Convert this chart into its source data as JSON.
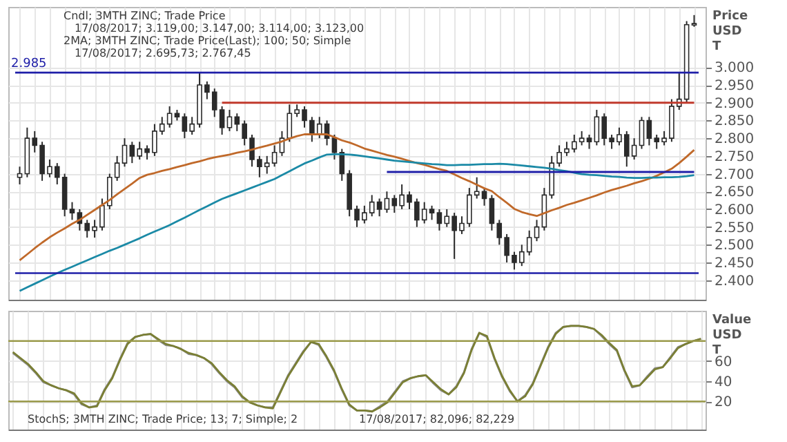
{
  "chart_data": [
    {
      "type": "candlestick",
      "ylabel": "Price USD T",
      "grid": true,
      "tick_labels": "y",
      "categories": [
        null,
        null,
        null,
        null,
        null,
        null,
        null,
        null,
        null,
        null,
        null,
        null,
        null,
        null,
        null,
        null,
        null,
        null,
        null,
        null,
        null,
        null,
        null,
        null,
        null,
        null,
        null,
        null,
        null,
        null,
        null,
        null,
        null,
        null,
        null,
        null,
        null,
        null,
        null,
        null,
        null,
        null,
        null,
        null,
        null,
        null,
        null,
        null,
        null,
        null,
        null,
        null,
        null,
        null,
        null,
        null,
        null,
        null,
        null,
        null,
        null,
        null,
        null,
        null,
        null,
        null,
        null,
        null,
        null,
        null,
        null,
        null,
        null,
        null,
        null,
        null,
        null,
        null,
        null,
        null,
        null,
        null,
        null,
        null,
        null,
        null,
        null,
        null,
        null,
        null,
        null
      ],
      "ylim": [
        2345,
        3170
      ],
      "yticks": [
        {
          "value": 2400,
          "label": "2.400"
        },
        {
          "value": 2450,
          "label": "2.450"
        },
        {
          "value": 2500,
          "label": "2.500"
        },
        {
          "value": 2550,
          "label": "2.550"
        },
        {
          "value": 2600,
          "label": "2.600"
        },
        {
          "value": 2650,
          "label": "2.650"
        },
        {
          "value": 2700,
          "label": "2.700"
        },
        {
          "value": 2750,
          "label": "2.750"
        },
        {
          "value": 2800,
          "label": "2.800"
        },
        {
          "value": 2850,
          "label": "2.850"
        },
        {
          "value": 2900,
          "label": "2.900"
        },
        {
          "value": 2950,
          "label": "2.950"
        },
        {
          "value": 3000,
          "label": "3.000"
        }
      ],
      "ref_lines": [
        {
          "axis": "y",
          "value": 2985,
          "label": "2.985",
          "color": "#1f1fa8"
        },
        {
          "axis": "y",
          "value": 2420,
          "label": null,
          "color": "#1f1fa8"
        }
      ],
      "annotations": [
        "Cndl; 3MTH        ZINC; Trade Price",
        "17/08/2017; 3.119,00; 3.147,00; 3.114,00; 3.123,00",
        "2MA; 3MTH        ZINC; Trade Price(Last);  100; 50; Simple",
        "17/08/2017; 2.695,73; 2.767,45"
      ],
      "series": [
        {
          "type": "candlestick",
          "color": "#2b2b2b",
          "ohlc": [
            [
              2690,
              2720,
              2670,
              2700
            ],
            [
              2700,
              2830,
              2690,
              2800
            ],
            [
              2800,
              2820,
              2760,
              2780
            ],
            [
              2780,
              2790,
              2680,
              2700
            ],
            [
              2700,
              2740,
              2690,
              2720
            ],
            [
              2720,
              2730,
              2670,
              2690
            ],
            [
              2690,
              2700,
              2580,
              2600
            ],
            [
              2600,
              2620,
              2570,
              2590
            ],
            [
              2590,
              2600,
              2540,
              2560
            ],
            [
              2560,
              2570,
              2520,
              2540
            ],
            [
              2540,
              2570,
              2520,
              2550
            ],
            [
              2550,
              2630,
              2540,
              2610
            ],
            [
              2610,
              2700,
              2600,
              2690
            ],
            [
              2690,
              2750,
              2680,
              2730
            ],
            [
              2730,
              2800,
              2720,
              2780
            ],
            [
              2780,
              2790,
              2730,
              2750
            ],
            [
              2750,
              2790,
              2740,
              2770
            ],
            [
              2770,
              2780,
              2740,
              2760
            ],
            [
              2760,
              2840,
              2750,
              2820
            ],
            [
              2820,
              2860,
              2810,
              2840
            ],
            [
              2840,
              2890,
              2830,
              2870
            ],
            [
              2870,
              2880,
              2850,
              2860
            ],
            [
              2860,
              2870,
              2800,
              2820
            ],
            [
              2820,
              2860,
              2810,
              2840
            ],
            [
              2840,
              2985,
              2830,
              2950
            ],
            [
              2950,
              2960,
              2910,
              2930
            ],
            [
              2930,
              2940,
              2860,
              2880
            ],
            [
              2880,
              2890,
              2810,
              2830
            ],
            [
              2830,
              2880,
              2820,
              2860
            ],
            [
              2860,
              2870,
              2820,
              2840
            ],
            [
              2840,
              2850,
              2780,
              2800
            ],
            [
              2800,
              2810,
              2720,
              2740
            ],
            [
              2740,
              2750,
              2690,
              2720
            ],
            [
              2720,
              2750,
              2700,
              2730
            ],
            [
              2730,
              2780,
              2720,
              2760
            ],
            [
              2760,
              2820,
              2750,
              2800
            ],
            [
              2800,
              2895,
              2790,
              2870
            ],
            [
              2870,
              2895,
              2860,
              2880
            ],
            [
              2880,
              2890,
              2830,
              2850
            ],
            [
              2850,
              2860,
              2790,
              2810
            ],
            [
              2810,
              2860,
              2800,
              2840
            ],
            [
              2840,
              2850,
              2780,
              2800
            ],
            [
              2800,
              2810,
              2740,
              2760
            ],
            [
              2760,
              2770,
              2680,
              2700
            ],
            [
              2700,
              2710,
              2580,
              2600
            ],
            [
              2600,
              2610,
              2550,
              2570
            ],
            [
              2570,
              2610,
              2560,
              2590
            ],
            [
              2590,
              2640,
              2580,
              2620
            ],
            [
              2620,
              2630,
              2580,
              2600
            ],
            [
              2600,
              2650,
              2590,
              2630
            ],
            [
              2630,
              2640,
              2590,
              2610
            ],
            [
              2610,
              2670,
              2600,
              2640
            ],
            [
              2640,
              2650,
              2600,
              2620
            ],
            [
              2620,
              2630,
              2550,
              2570
            ],
            [
              2570,
              2620,
              2560,
              2600
            ],
            [
              2600,
              2610,
              2570,
              2590
            ],
            [
              2590,
              2600,
              2540,
              2560
            ],
            [
              2560,
              2600,
              2550,
              2580
            ],
            [
              2580,
              2590,
              2460,
              2540
            ],
            [
              2540,
              2580,
              2530,
              2560
            ],
            [
              2560,
              2660,
              2550,
              2640
            ],
            [
              2640,
              2690,
              2630,
              2650
            ],
            [
              2650,
              2660,
              2610,
              2630
            ],
            [
              2630,
              2640,
              2540,
              2560
            ],
            [
              2560,
              2570,
              2500,
              2520
            ],
            [
              2520,
              2530,
              2450,
              2470
            ],
            [
              2470,
              2480,
              2430,
              2450
            ],
            [
              2450,
              2500,
              2440,
              2480
            ],
            [
              2480,
              2540,
              2470,
              2520
            ],
            [
              2520,
              2570,
              2510,
              2550
            ],
            [
              2550,
              2660,
              2540,
              2640
            ],
            [
              2640,
              2750,
              2630,
              2730
            ],
            [
              2730,
              2780,
              2720,
              2760
            ],
            [
              2760,
              2790,
              2750,
              2770
            ],
            [
              2770,
              2810,
              2760,
              2790
            ],
            [
              2790,
              2820,
              2780,
              2800
            ],
            [
              2800,
              2810,
              2770,
              2790
            ],
            [
              2790,
              2880,
              2780,
              2860
            ],
            [
              2860,
              2870,
              2780,
              2800
            ],
            [
              2800,
              2810,
              2770,
              2790
            ],
            [
              2790,
              2830,
              2780,
              2810
            ],
            [
              2810,
              2820,
              2720,
              2750
            ],
            [
              2750,
              2800,
              2740,
              2780
            ],
            [
              2780,
              2860,
              2770,
              2850
            ],
            [
              2850,
              2860,
              2780,
              2800
            ],
            [
              2800,
              2810,
              2770,
              2790
            ],
            [
              2790,
              2820,
              2780,
              2800
            ],
            [
              2800,
              2910,
              2790,
              2890
            ],
            [
              2890,
              2985,
              2880,
              2910
            ],
            [
              2910,
              3130,
              2900,
              3120
            ],
            [
              3119,
              3147,
              3114,
              3123
            ]
          ]
        },
        {
          "type": "line",
          "color": "#c0692a",
          "values": [
            2456,
            2473,
            2490,
            2506,
            2521,
            2534,
            2546,
            2559,
            2570,
            2584,
            2598,
            2612,
            2626,
            2642,
            2657,
            2672,
            2688,
            2697,
            2702,
            2708,
            2713,
            2719,
            2724,
            2730,
            2735,
            2741,
            2746,
            2750,
            2754,
            2759,
            2763,
            2768,
            2774,
            2779,
            2785,
            2791,
            2799,
            2806,
            2811,
            2811,
            2811,
            2811,
            2803,
            2794,
            2788,
            2780,
            2771,
            2765,
            2759,
            2753,
            2748,
            2742,
            2736,
            2730,
            2725,
            2719,
            2713,
            2708,
            2698,
            2688,
            2679,
            2669,
            2659,
            2651,
            2634,
            2618,
            2601,
            2592,
            2586,
            2581,
            2589,
            2597,
            2604,
            2612,
            2618,
            2625,
            2632,
            2639,
            2647,
            2654,
            2660,
            2666,
            2673,
            2679,
            2686,
            2694,
            2704,
            2714,
            2730,
            2748,
            2767
          ]
        },
        {
          "type": "line",
          "color": "#1b8aa6",
          "values": [
            2370,
            2380,
            2390,
            2400,
            2410,
            2420,
            2429,
            2438,
            2447,
            2456,
            2465,
            2474,
            2483,
            2491,
            2500,
            2509,
            2518,
            2528,
            2537,
            2546,
            2555,
            2566,
            2576,
            2587,
            2598,
            2608,
            2619,
            2629,
            2637,
            2645,
            2653,
            2661,
            2669,
            2677,
            2685,
            2696,
            2707,
            2718,
            2729,
            2737,
            2746,
            2754,
            2755,
            2755,
            2754,
            2752,
            2749,
            2746,
            2743,
            2740,
            2737,
            2735,
            2733,
            2731,
            2729,
            2727,
            2726,
            2724,
            2724,
            2725,
            2725,
            2726,
            2727,
            2727,
            2728,
            2727,
            2725,
            2723,
            2721,
            2719,
            2717,
            2714,
            2710,
            2707,
            2703,
            2699,
            2697,
            2696,
            2694,
            2692,
            2691,
            2689,
            2688,
            2688,
            2689,
            2689,
            2690,
            2690,
            2691,
            2693,
            2696
          ]
        },
        {
          "type": "line",
          "color": "#c0392b",
          "values": [
            null,
            null,
            null,
            null,
            null,
            null,
            null,
            null,
            null,
            null,
            null,
            null,
            null,
            null,
            null,
            null,
            null,
            null,
            null,
            null,
            null,
            null,
            null,
            null,
            null,
            null,
            null,
            2900,
            2900,
            2900,
            2900,
            2900,
            2900,
            2900,
            2900,
            2900,
            2900,
            2900,
            2900,
            2900,
            2900,
            2900,
            2900,
            2900,
            2900,
            2900,
            2900,
            2900,
            2900,
            2900,
            2900,
            2900,
            2900,
            2900,
            2900,
            2900,
            2900,
            2900,
            2900,
            2900,
            2900,
            2900,
            2900,
            2900,
            2900,
            2900,
            2900,
            2900,
            2900,
            2900,
            2900,
            2900,
            2900,
            2900,
            2900,
            2900,
            2900,
            2900,
            2900,
            2900,
            2900,
            2900,
            2900,
            2900,
            2900,
            2900,
            2900,
            2900,
            2900,
            2900,
            2900
          ]
        },
        {
          "type": "line",
          "color": "#1f1fa8",
          "values": [
            null,
            null,
            null,
            null,
            null,
            null,
            null,
            null,
            null,
            null,
            null,
            null,
            null,
            null,
            null,
            null,
            null,
            null,
            null,
            null,
            null,
            null,
            null,
            null,
            null,
            null,
            null,
            null,
            null,
            null,
            null,
            null,
            null,
            null,
            null,
            null,
            null,
            null,
            null,
            null,
            null,
            null,
            null,
            null,
            null,
            null,
            null,
            null,
            null,
            2705,
            2705,
            2705,
            2705,
            2705,
            2705,
            2705,
            2705,
            2705,
            2705,
            2705,
            2705,
            2705,
            2705,
            2705,
            2705,
            2705,
            2705,
            2705,
            2705,
            2705,
            2705,
            2705,
            2705,
            2705,
            2705,
            2705,
            2705,
            2705,
            2705,
            2705,
            2705,
            2705,
            2705,
            2705,
            2705,
            2705,
            2705,
            2705,
            2705,
            2705,
            2705
          ]
        }
      ]
    },
    {
      "type": "line",
      "ylabel": "Value USD T",
      "grid": true,
      "tick_labels": "y",
      "categories": [
        null,
        null,
        null,
        null,
        null,
        null,
        null,
        null,
        null,
        null,
        null,
        null,
        null,
        null,
        null,
        null,
        null,
        null,
        null,
        null,
        null,
        null,
        null,
        null,
        null,
        null,
        null,
        null,
        null,
        null,
        null,
        null,
        null,
        null,
        null,
        null,
        null,
        null,
        null,
        null,
        null,
        null,
        null,
        null,
        null,
        null,
        null,
        null,
        null,
        null,
        null,
        null,
        null,
        null,
        null,
        null,
        null,
        null,
        null,
        null,
        null,
        null,
        null,
        null,
        null,
        null,
        null,
        null,
        null,
        null,
        null,
        null,
        null,
        null,
        null,
        null,
        null,
        null,
        null,
        null,
        null,
        null,
        null,
        null,
        null,
        null,
        null,
        null,
        null,
        null,
        null
      ],
      "ylim": [
        -8,
        110
      ],
      "yticks": [
        20,
        40,
        60
      ],
      "ref_lines": [
        {
          "axis": "y",
          "value": 80,
          "label": null,
          "color": "#9a9a4a"
        },
        {
          "axis": "y",
          "value": 20,
          "label": null,
          "color": "#9a9a4a"
        }
      ],
      "annotations": [
        "StochS; 3MTH        ZINC; Trade Price;  13; 7; Simple; 2",
        "17/08/2017; 82,096; 82,229"
      ],
      "series": [
        {
          "type": "line",
          "color": "#8c8c8c",
          "values": [
            68,
            62,
            56,
            48,
            39,
            36,
            33,
            31,
            27,
            17,
            14,
            16,
            32,
            44,
            62,
            78,
            84,
            86,
            87,
            81,
            76,
            75,
            72,
            67,
            66,
            63,
            57,
            48,
            40,
            34,
            24,
            19,
            16,
            14,
            14,
            30,
            46,
            58,
            70,
            79,
            76,
            64,
            50,
            32,
            16,
            11,
            11,
            10,
            15,
            20,
            30,
            40,
            43,
            45,
            46,
            38,
            31,
            27,
            35,
            49,
            72,
            88,
            84,
            62,
            44,
            30,
            20,
            26,
            38,
            56,
            74,
            88,
            94,
            95,
            95,
            94,
            92,
            85,
            77,
            70,
            50,
            34,
            36,
            45,
            53,
            54,
            64,
            74,
            77,
            80,
            82.096
          ]
        },
        {
          "type": "line",
          "color": "#7a7f34",
          "values": [
            69,
            63,
            57,
            49,
            40,
            36,
            33,
            31,
            28,
            18,
            14,
            15,
            31,
            43,
            61,
            77,
            84,
            86,
            87,
            82,
            77,
            75,
            72,
            68,
            66,
            63,
            58,
            49,
            41,
            35,
            25,
            19,
            16,
            14,
            13,
            29,
            45,
            57,
            69,
            79,
            77,
            65,
            51,
            33,
            17,
            11,
            11,
            10,
            14,
            19,
            29,
            39,
            43,
            45,
            46,
            39,
            32,
            27,
            34,
            48,
            71,
            88,
            85,
            63,
            45,
            31,
            20,
            25,
            37,
            55,
            73,
            87,
            94,
            95,
            95,
            94,
            92,
            86,
            78,
            71,
            51,
            35,
            36,
            44,
            52,
            54,
            63,
            73,
            77,
            80,
            82.229
          ]
        }
      ]
    }
  ]
}
